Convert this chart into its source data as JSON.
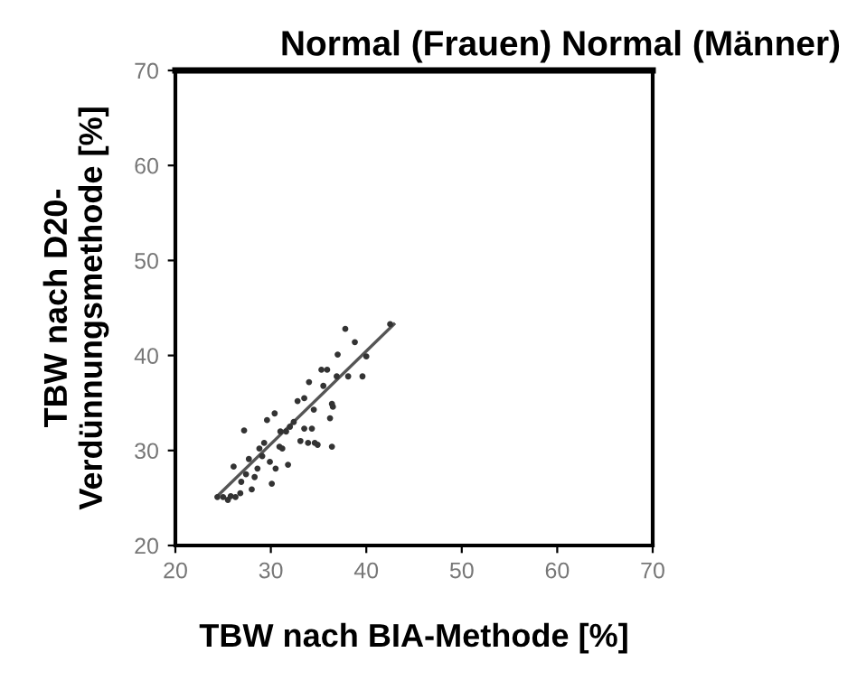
{
  "chart_data": {
    "type": "scatter",
    "title": "Normal (Frauen) Normal (Männer)",
    "xlabel": "TBW nach BIA-Methode [%]",
    "ylabel": "TBW nach D20-\nVerdünnungsmethode [%]",
    "xlim": [
      20,
      70
    ],
    "ylim": [
      20,
      70
    ],
    "xticks": [
      20,
      30,
      40,
      50,
      60,
      70
    ],
    "yticks": [
      20,
      30,
      40,
      50,
      60,
      70
    ],
    "grid": false,
    "legend": false,
    "series": [
      {
        "color": "#333333",
        "marker": "circle",
        "x": [
          24.4,
          25.0,
          25.5,
          25.8,
          26.3,
          26.8,
          26.1,
          26.9,
          27.4,
          27.7,
          27.2,
          28.0,
          28.3,
          28.6,
          28.8,
          29.1,
          29.3,
          29.6,
          29.9,
          30.1,
          30.4,
          30.5,
          30.9,
          31.0,
          31.2,
          31.8,
          31.6,
          32.0,
          32.4,
          32.8,
          33.1,
          33.5,
          33.5,
          33.9,
          34.0,
          34.3,
          34.5,
          34.6,
          34.9,
          35.3,
          35.5,
          35.9,
          36.4,
          36.5,
          36.2,
          36.4,
          36.9,
          37.0,
          37.8,
          38.1,
          38.8,
          39.6,
          40.0,
          42.5
        ],
        "values": [
          25.1,
          25.1,
          24.8,
          25.2,
          25.1,
          25.5,
          28.3,
          26.7,
          27.5,
          29.1,
          32.1,
          25.9,
          27.2,
          28.1,
          30.2,
          29.4,
          30.8,
          33.2,
          28.8,
          26.5,
          33.9,
          28.1,
          30.4,
          32.0,
          30.2,
          28.5,
          32.0,
          32.5,
          33.0,
          35.2,
          31.0,
          35.5,
          32.3,
          30.8,
          37.2,
          32.3,
          34.3,
          30.8,
          30.6,
          38.5,
          36.8,
          38.5,
          34.9,
          34.6,
          33.4,
          30.4,
          37.8,
          40.1,
          42.8,
          37.8,
          41.4,
          37.8,
          39.9,
          43.3
        ]
      },
      {
        "type": "line",
        "color": "#555555",
        "marker": "none",
        "line_style": "solid",
        "x": [
          24.4,
          42.9
        ],
        "values": [
          25.2,
          43.3
        ]
      }
    ]
  }
}
